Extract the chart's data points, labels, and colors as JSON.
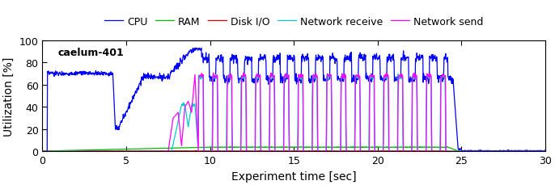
{
  "title": "caelum-401",
  "xlabel": "Experiment time [sec]",
  "ylabel": "Utilization [%]",
  "xlim": [
    0,
    30
  ],
  "ylim": [
    0,
    100
  ],
  "legend_labels": [
    "CPU",
    "RAM",
    "Disk I/O",
    "Network receive",
    "Network send"
  ],
  "legend_colors": [
    "#0000ff",
    "#00bb00",
    "#dd0000",
    "#00cccc",
    "#ff00ff"
  ],
  "background_color": "white",
  "annotation_text": "caelum-401",
  "xticks": [
    0,
    5,
    10,
    15,
    20,
    25,
    30
  ],
  "yticks": [
    0,
    20,
    40,
    60,
    80,
    100
  ]
}
